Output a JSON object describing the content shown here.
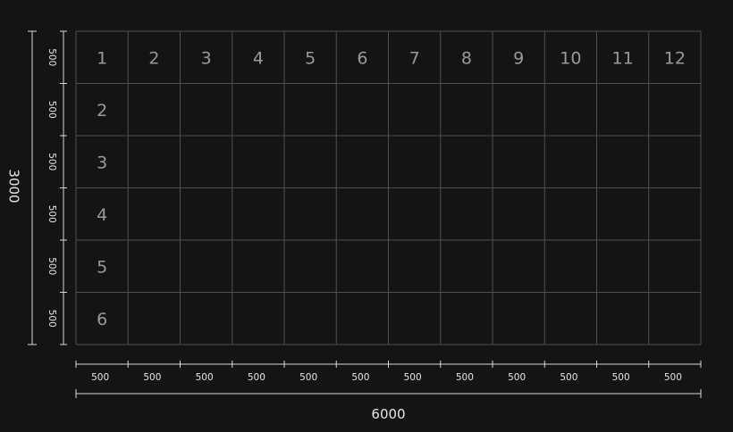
{
  "colors": {
    "background": "#141414",
    "grid_line": "#505050",
    "grid_label": "#9a9a9a",
    "dimension_line": "#d8d8d8",
    "dimension_text": "#e6e6e6"
  },
  "grid": {
    "columns": 12,
    "rows": 6,
    "column_labels": [
      "1",
      "2",
      "3",
      "4",
      "5",
      "6",
      "7",
      "8",
      "9",
      "10",
      "11",
      "12"
    ],
    "row_labels": [
      "1",
      "2",
      "3",
      "4",
      "5",
      "6"
    ]
  },
  "dimensions": {
    "horizontal": {
      "segments": [
        "500",
        "500",
        "500",
        "500",
        "500",
        "500",
        "500",
        "500",
        "500",
        "500",
        "500",
        "500"
      ],
      "total": "6000"
    },
    "vertical": {
      "segments": [
        "500",
        "500",
        "500",
        "500",
        "500",
        "500"
      ],
      "total": "3000"
    }
  }
}
